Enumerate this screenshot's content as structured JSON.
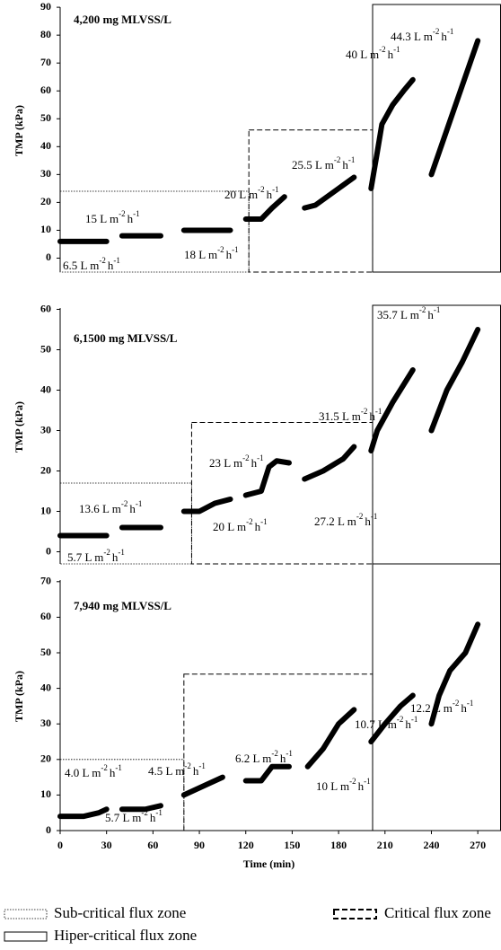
{
  "chart_data": [
    {
      "type": "line",
      "title": "4,200 mg MLVSS/L",
      "ylabel": "TMP (kPa)",
      "xlim": [
        0,
        285
      ],
      "ylim": [
        -5,
        91
      ],
      "yticks": [
        0,
        10,
        20,
        30,
        40,
        50,
        60,
        70,
        80,
        90
      ],
      "series": [
        {
          "color": "#000000",
          "x": [
            0,
            30,
            null,
            40,
            65,
            null,
            80,
            110,
            null,
            120,
            130,
            137,
            145,
            null,
            158,
            165,
            180,
            190,
            null,
            201,
            205,
            208,
            215,
            222,
            228,
            null,
            240,
            270
          ],
          "values": [
            6,
            6,
            null,
            8,
            8,
            null,
            10,
            10,
            null,
            14,
            14,
            18,
            22,
            null,
            18,
            19,
            25,
            29,
            null,
            25,
            38,
            48,
            55,
            60,
            64,
            null,
            30,
            78
          ]
        }
      ],
      "zones": [
        {
          "style": "dotted",
          "x": [
            0,
            122
          ],
          "y": [
            -5,
            24
          ]
        },
        {
          "style": "dashed",
          "x": [
            122,
            202
          ],
          "y": [
            -5,
            46
          ]
        },
        {
          "style": "solid",
          "x": [
            202,
            285
          ],
          "y": [
            -5,
            91
          ]
        }
      ],
      "annotations": [
        "6.5",
        "15",
        "18",
        "20",
        "25.5",
        "40",
        "44.3"
      ]
    },
    {
      "type": "line",
      "title": "6,1500 mg MLVSS/L",
      "ylabel": "TMP (kPa)",
      "xlim": [
        0,
        285
      ],
      "ylim": [
        -3,
        61
      ],
      "yticks": [
        0,
        10,
        20,
        30,
        40,
        50,
        60
      ],
      "series": [
        {
          "color": "#000000",
          "x": [
            0,
            30,
            null,
            40,
            65,
            null,
            80,
            90,
            100,
            110,
            null,
            120,
            130,
            135,
            140,
            148,
            null,
            158,
            170,
            183,
            190,
            null,
            201,
            205,
            215,
            228,
            null,
            240,
            250,
            260,
            270
          ],
          "values": [
            4,
            4,
            null,
            6,
            6,
            null,
            10,
            10,
            12,
            13,
            null,
            14,
            15,
            21,
            22.5,
            22,
            null,
            18,
            20,
            23,
            26,
            null,
            25,
            30,
            37,
            45,
            null,
            30,
            40,
            47,
            55
          ]
        }
      ],
      "zones": [
        {
          "style": "dotted",
          "x": [
            0,
            85
          ],
          "y": [
            -3,
            17
          ]
        },
        {
          "style": "dashed",
          "x": [
            85,
            202
          ],
          "y": [
            -3,
            32
          ]
        },
        {
          "style": "solid",
          "x": [
            202,
            285
          ],
          "y": [
            -3,
            61
          ]
        }
      ],
      "annotations": [
        "5.7",
        "13.6",
        "20",
        "23",
        "27.2",
        "31.5",
        "35.7"
      ]
    },
    {
      "type": "line",
      "title": "7,940 mg MLVSS/L",
      "ylabel": "TMP (kPa)",
      "xlabel": "Time (min)",
      "xlim": [
        0,
        285
      ],
      "ylim": [
        0,
        75
      ],
      "yticks": [
        0,
        10,
        20,
        30,
        40,
        50,
        60,
        70
      ],
      "xticks": [
        0,
        30,
        60,
        90,
        120,
        150,
        180,
        210,
        240,
        270
      ],
      "series": [
        {
          "color": "#000000",
          "x": [
            0,
            15,
            25,
            30,
            null,
            40,
            55,
            65,
            null,
            80,
            95,
            105,
            null,
            120,
            130,
            137,
            148,
            null,
            160,
            170,
            180,
            190,
            null,
            201,
            210,
            220,
            228,
            null,
            240,
            245,
            252,
            262,
            270
          ],
          "values": [
            4,
            4,
            5,
            6,
            null,
            6,
            6,
            7,
            null,
            10,
            13,
            15,
            null,
            14,
            14,
            18,
            18,
            null,
            18,
            23,
            30,
            34,
            null,
            25,
            30,
            35,
            38,
            null,
            30,
            38,
            45,
            50,
            58
          ]
        }
      ],
      "zones": [
        {
          "style": "dotted",
          "x": [
            0,
            80
          ],
          "y": [
            0,
            20
          ]
        },
        {
          "style": "dashed",
          "x": [
            80,
            202
          ],
          "y": [
            0,
            44
          ]
        },
        {
          "style": "solid",
          "x": [
            202,
            285
          ],
          "y": [
            0,
            75
          ]
        }
      ],
      "annotations": [
        "4.0",
        "5.7",
        "4.5",
        "6.2",
        "10",
        "10.7",
        "12.2"
      ]
    }
  ],
  "flux_unit": {
    "base": "L m",
    "exp1": "-2",
    "h": "h",
    "exp2": "-1"
  },
  "legend": [
    {
      "label": "Sub-critical flux zone",
      "style": "dotted"
    },
    {
      "label": "Critical flux zone",
      "style": "dashed"
    },
    {
      "label": "Hiper-critical flux zone",
      "style": "solid"
    }
  ]
}
